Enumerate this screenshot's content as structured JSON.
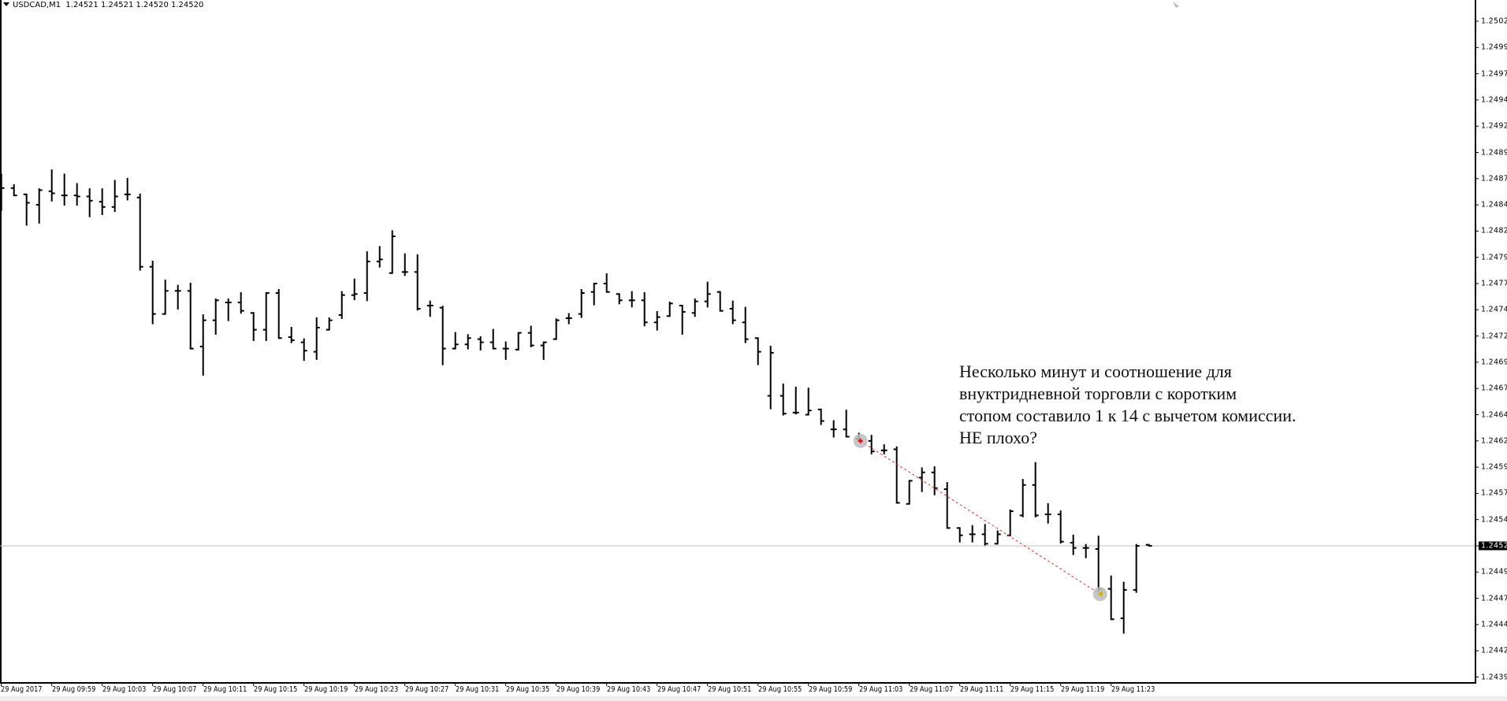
{
  "header": {
    "symbol": "USDCAD,M1",
    "ohlc": "1.24521 1.24521 1.24520 1.24520"
  },
  "note": {
    "lines": [
      "Несколько минут и соотношение для",
      "внуктридневной торговли с коротким",
      "стопом составило 1 к 14 с вычетом комиссии.",
      "НЕ плохо?"
    ]
  },
  "colors": {
    "bars": "#000000",
    "current_price_line": "#c0c0c0",
    "trade_line": "#e03030",
    "marker": "#bdbdbd"
  },
  "chart_data": {
    "type": "ohlc",
    "symbol": "USDCAD",
    "timeframe": "M1",
    "ylim": [
      1.24383,
      1.25041
    ],
    "price_ticks": [
      "1.25020",
      "1.24995",
      "1.24970",
      "1.24945",
      "1.24920",
      "1.24895",
      "1.24870",
      "1.24845",
      "1.24820",
      "1.24795",
      "1.24770",
      "1.24745",
      "1.24720",
      "1.24695",
      "1.24670",
      "1.24645",
      "1.24620",
      "1.24595",
      "1.24570",
      "1.24545",
      "1.24520",
      "1.24495",
      "1.24470",
      "1.24445",
      "1.24420",
      "1.24395"
    ],
    "current_price": "1.24520",
    "time_labels": [
      "29 Aug 2017",
      "29 Aug 09:59",
      "29 Aug 10:03",
      "29 Aug 10:07",
      "29 Aug 10:11",
      "29 Aug 10:15",
      "29 Aug 10:19",
      "29 Aug 10:23",
      "29 Aug 10:27",
      "29 Aug 10:31",
      "29 Aug 10:35",
      "29 Aug 10:39",
      "29 Aug 10:43",
      "29 Aug 10:47",
      "29 Aug 10:51",
      "29 Aug 10:55",
      "29 Aug 10:59",
      "29 Aug 11:03",
      "29 Aug 11:07",
      "29 Aug 11:11",
      "29 Aug 11:15",
      "29 Aug 11:19",
      "29 Aug 11:23"
    ],
    "bars_columns": [
      "time",
      "open",
      "high",
      "low",
      "close"
    ],
    "bars": [
      [
        "09:55",
        1.24868,
        1.24874,
        1.2484,
        1.24861
      ],
      [
        "09:56",
        1.24861,
        1.24864,
        1.24854,
        1.24854
      ],
      [
        "09:57",
        1.24855,
        1.24855,
        1.24826,
        1.24847
      ],
      [
        "09:58",
        1.24845,
        1.2486,
        1.24828,
        1.24859
      ],
      [
        "09:59",
        1.24858,
        1.24878,
        1.24849,
        1.24856
      ],
      [
        "10:00",
        1.24854,
        1.24874,
        1.24845,
        1.24854
      ],
      [
        "10:01",
        1.24854,
        1.24865,
        1.24845,
        1.24853
      ],
      [
        "10:02",
        1.24853,
        1.2486,
        1.24834,
        1.24849
      ],
      [
        "10:03",
        1.24848,
        1.2486,
        1.24836,
        1.24843
      ],
      [
        "10:04",
        1.24843,
        1.24868,
        1.24839,
        1.24853
      ],
      [
        "10:05",
        1.24855,
        1.2487,
        1.2485,
        1.24855
      ],
      [
        "10:06",
        1.24852,
        1.24855,
        1.24783,
        1.24786
      ],
      [
        "10:07",
        1.24786,
        1.24791,
        1.24732,
        1.24741
      ],
      [
        "10:08",
        1.24741,
        1.24773,
        1.24741,
        1.24763
      ],
      [
        "10:09",
        1.24763,
        1.24768,
        1.24746,
        1.24763
      ],
      [
        "10:10",
        1.24763,
        1.2477,
        1.24708,
        1.24708
      ],
      [
        "10:11",
        1.2471,
        1.2474,
        1.24683,
        1.24735
      ],
      [
        "10:12",
        1.24735,
        1.24755,
        1.24722,
        1.24754
      ],
      [
        "10:13",
        1.24752,
        1.24755,
        1.24735,
        1.24752
      ],
      [
        "10:14",
        1.24752,
        1.24761,
        1.24742,
        1.24744
      ],
      [
        "10:15",
        1.24742,
        1.24742,
        1.24716,
        1.24726
      ],
      [
        "10:16",
        1.24726,
        1.24761,
        1.24716,
        1.24761
      ],
      [
        "10:17",
        1.24761,
        1.24764,
        1.24718,
        1.24718
      ],
      [
        "10:18",
        1.24719,
        1.24728,
        1.24714,
        1.24716
      ],
      [
        "10:19",
        1.24714,
        1.24717,
        1.24697,
        1.24706
      ],
      [
        "10:20",
        1.24705,
        1.24737,
        1.24698,
        1.24728
      ],
      [
        "10:21",
        1.24726,
        1.24737,
        1.24726,
        1.24735
      ],
      [
        "10:22",
        1.2474,
        1.24762,
        1.24737,
        1.24759
      ],
      [
        "10:23",
        1.24759,
        1.24774,
        1.24755,
        1.2476
      ],
      [
        "10:24",
        1.24761,
        1.248,
        1.24754,
        1.24791
      ],
      [
        "10:25",
        1.24791,
        1.24805,
        1.24786,
        1.24793
      ],
      [
        "10:26",
        1.2478,
        1.2482,
        1.2478,
        1.24815
      ],
      [
        "10:27",
        1.24781,
        1.24798,
        1.24778,
        1.24781
      ],
      [
        "10:28",
        1.24781,
        1.24797,
        1.24745,
        1.24746
      ],
      [
        "10:29",
        1.24749,
        1.24753,
        1.24739,
        1.24749
      ],
      [
        "10:30",
        1.24747,
        1.24748,
        1.24693,
        1.24708
      ],
      [
        "10:31",
        1.24708,
        1.24723,
        1.24708,
        1.24712
      ],
      [
        "10:32",
        1.24712,
        1.24721,
        1.24708,
        1.24718
      ],
      [
        "10:33",
        1.24717,
        1.24719,
        1.24707,
        1.24714
      ],
      [
        "10:34",
        1.24714,
        1.24726,
        1.24708,
        1.24708
      ],
      [
        "10:35",
        1.24708,
        1.24714,
        1.24698,
        1.24708
      ],
      [
        "10:36",
        1.24707,
        1.24723,
        1.24707,
        1.24723
      ],
      [
        "10:37",
        1.24723,
        1.24729,
        1.2471,
        1.24711
      ],
      [
        "10:38",
        1.24711,
        1.24714,
        1.24698,
        1.24714
      ],
      [
        "10:39",
        1.24717,
        1.24736,
        1.24717,
        1.24735
      ],
      [
        "10:40",
        1.24737,
        1.24741,
        1.24732,
        1.24737
      ],
      [
        "10:41",
        1.24741,
        1.24764,
        1.24738,
        1.24761
      ],
      [
        "10:42",
        1.24762,
        1.2477,
        1.2475,
        1.2477
      ],
      [
        "10:43",
        1.2477,
        1.24779,
        1.24762,
        1.24762
      ],
      [
        "10:44",
        1.2476,
        1.2476,
        1.24751,
        1.24754
      ],
      [
        "10:45",
        1.24754,
        1.24762,
        1.24748,
        1.24754
      ],
      [
        "10:46",
        1.24754,
        1.24761,
        1.2473,
        1.24733
      ],
      [
        "10:47",
        1.24733,
        1.24743,
        1.24726,
        1.24738
      ],
      [
        "10:48",
        1.24739,
        1.24752,
        1.24739,
        1.24751
      ],
      [
        "10:49",
        1.24749,
        1.24749,
        1.24722,
        1.24743
      ],
      [
        "10:50",
        1.24742,
        1.24755,
        1.24739,
        1.24753
      ],
      [
        "10:51",
        1.24753,
        1.24771,
        1.24748,
        1.2476
      ],
      [
        "10:52",
        1.24762,
        1.24762,
        1.24744,
        1.24744
      ],
      [
        "10:53",
        1.24746,
        1.24753,
        1.24732,
        1.24735
      ],
      [
        "10:54",
        1.24733,
        1.24747,
        1.24714,
        1.24717
      ],
      [
        "10:55",
        1.24718,
        1.24718,
        1.24693,
        1.24705
      ],
      [
        "10:56",
        1.24663,
        1.2471,
        1.24651,
        1.24704
      ],
      [
        "10:57",
        1.24663,
        1.24674,
        1.24645,
        1.24646
      ],
      [
        "10:58",
        1.24647,
        1.24671,
        1.24646,
        1.24647
      ],
      [
        "10:59",
        1.24645,
        1.2467,
        1.24645,
        1.24649
      ],
      [
        "11:00",
        1.2465,
        1.2465,
        1.24636,
        1.24639
      ],
      [
        "11:01",
        1.24631,
        1.24639,
        1.24624,
        1.24631
      ],
      [
        "11:02",
        1.24631,
        1.24649,
        1.24624,
        1.24624
      ],
      [
        "11:03",
        1.24622,
        1.24627,
        1.2462,
        1.2462
      ],
      [
        "11:04",
        1.2462,
        1.24625,
        1.24608,
        1.2461
      ],
      [
        "11:05",
        1.24611,
        1.24616,
        1.24608,
        1.24611
      ],
      [
        "11:06",
        1.24612,
        1.24614,
        1.24561,
        1.24561
      ],
      [
        "11:07",
        1.2456,
        1.24582,
        1.2456,
        1.24582
      ],
      [
        "11:08",
        1.24585,
        1.24594,
        1.24572,
        1.2459
      ],
      [
        "11:09",
        1.2459,
        1.24595,
        1.24569,
        1.24575
      ],
      [
        "11:10",
        1.24574,
        1.2458,
        1.24537,
        1.24537
      ],
      [
        "11:11",
        1.24537,
        1.24537,
        1.24524,
        1.2453
      ],
      [
        "11:12",
        1.24531,
        1.24539,
        1.24524,
        1.24531
      ],
      [
        "11:13",
        1.24531,
        1.2454,
        1.24521,
        1.24522
      ],
      [
        "11:14",
        1.24522,
        1.24534,
        1.24522,
        1.24531
      ],
      [
        "11:15",
        1.2453,
        1.24554,
        1.2453,
        1.24553
      ],
      [
        "11:16",
        1.24549,
        1.24583,
        1.24548,
        1.24578
      ],
      [
        "11:17",
        1.24578,
        1.24599,
        1.24548,
        1.24549
      ],
      [
        "11:18",
        1.2455,
        1.2456,
        1.24542,
        1.2455
      ],
      [
        "11:19",
        1.2455,
        1.24553,
        1.24523,
        1.24524
      ],
      [
        "11:20",
        1.24523,
        1.2453,
        1.24512,
        1.24518
      ],
      [
        "11:21",
        1.24518,
        1.24521,
        1.24509,
        1.24518
      ],
      [
        "11:22",
        1.24517,
        1.24529,
        1.24477,
        1.24479
      ],
      [
        "11:23",
        1.24479,
        1.24491,
        1.2445,
        1.2445
      ],
      [
        "11:24",
        1.24451,
        1.24485,
        1.24437,
        1.24478
      ],
      [
        "11:25",
        1.24478,
        1.24521,
        1.24476,
        1.2452
      ],
      [
        "11:26",
        1.24521,
        1.24521,
        1.2452,
        1.2452
      ]
    ],
    "trade": {
      "entry_time": "11:03",
      "entry_price": 1.2462,
      "exit_time": "11:22",
      "exit_price": 1.24474
    }
  }
}
